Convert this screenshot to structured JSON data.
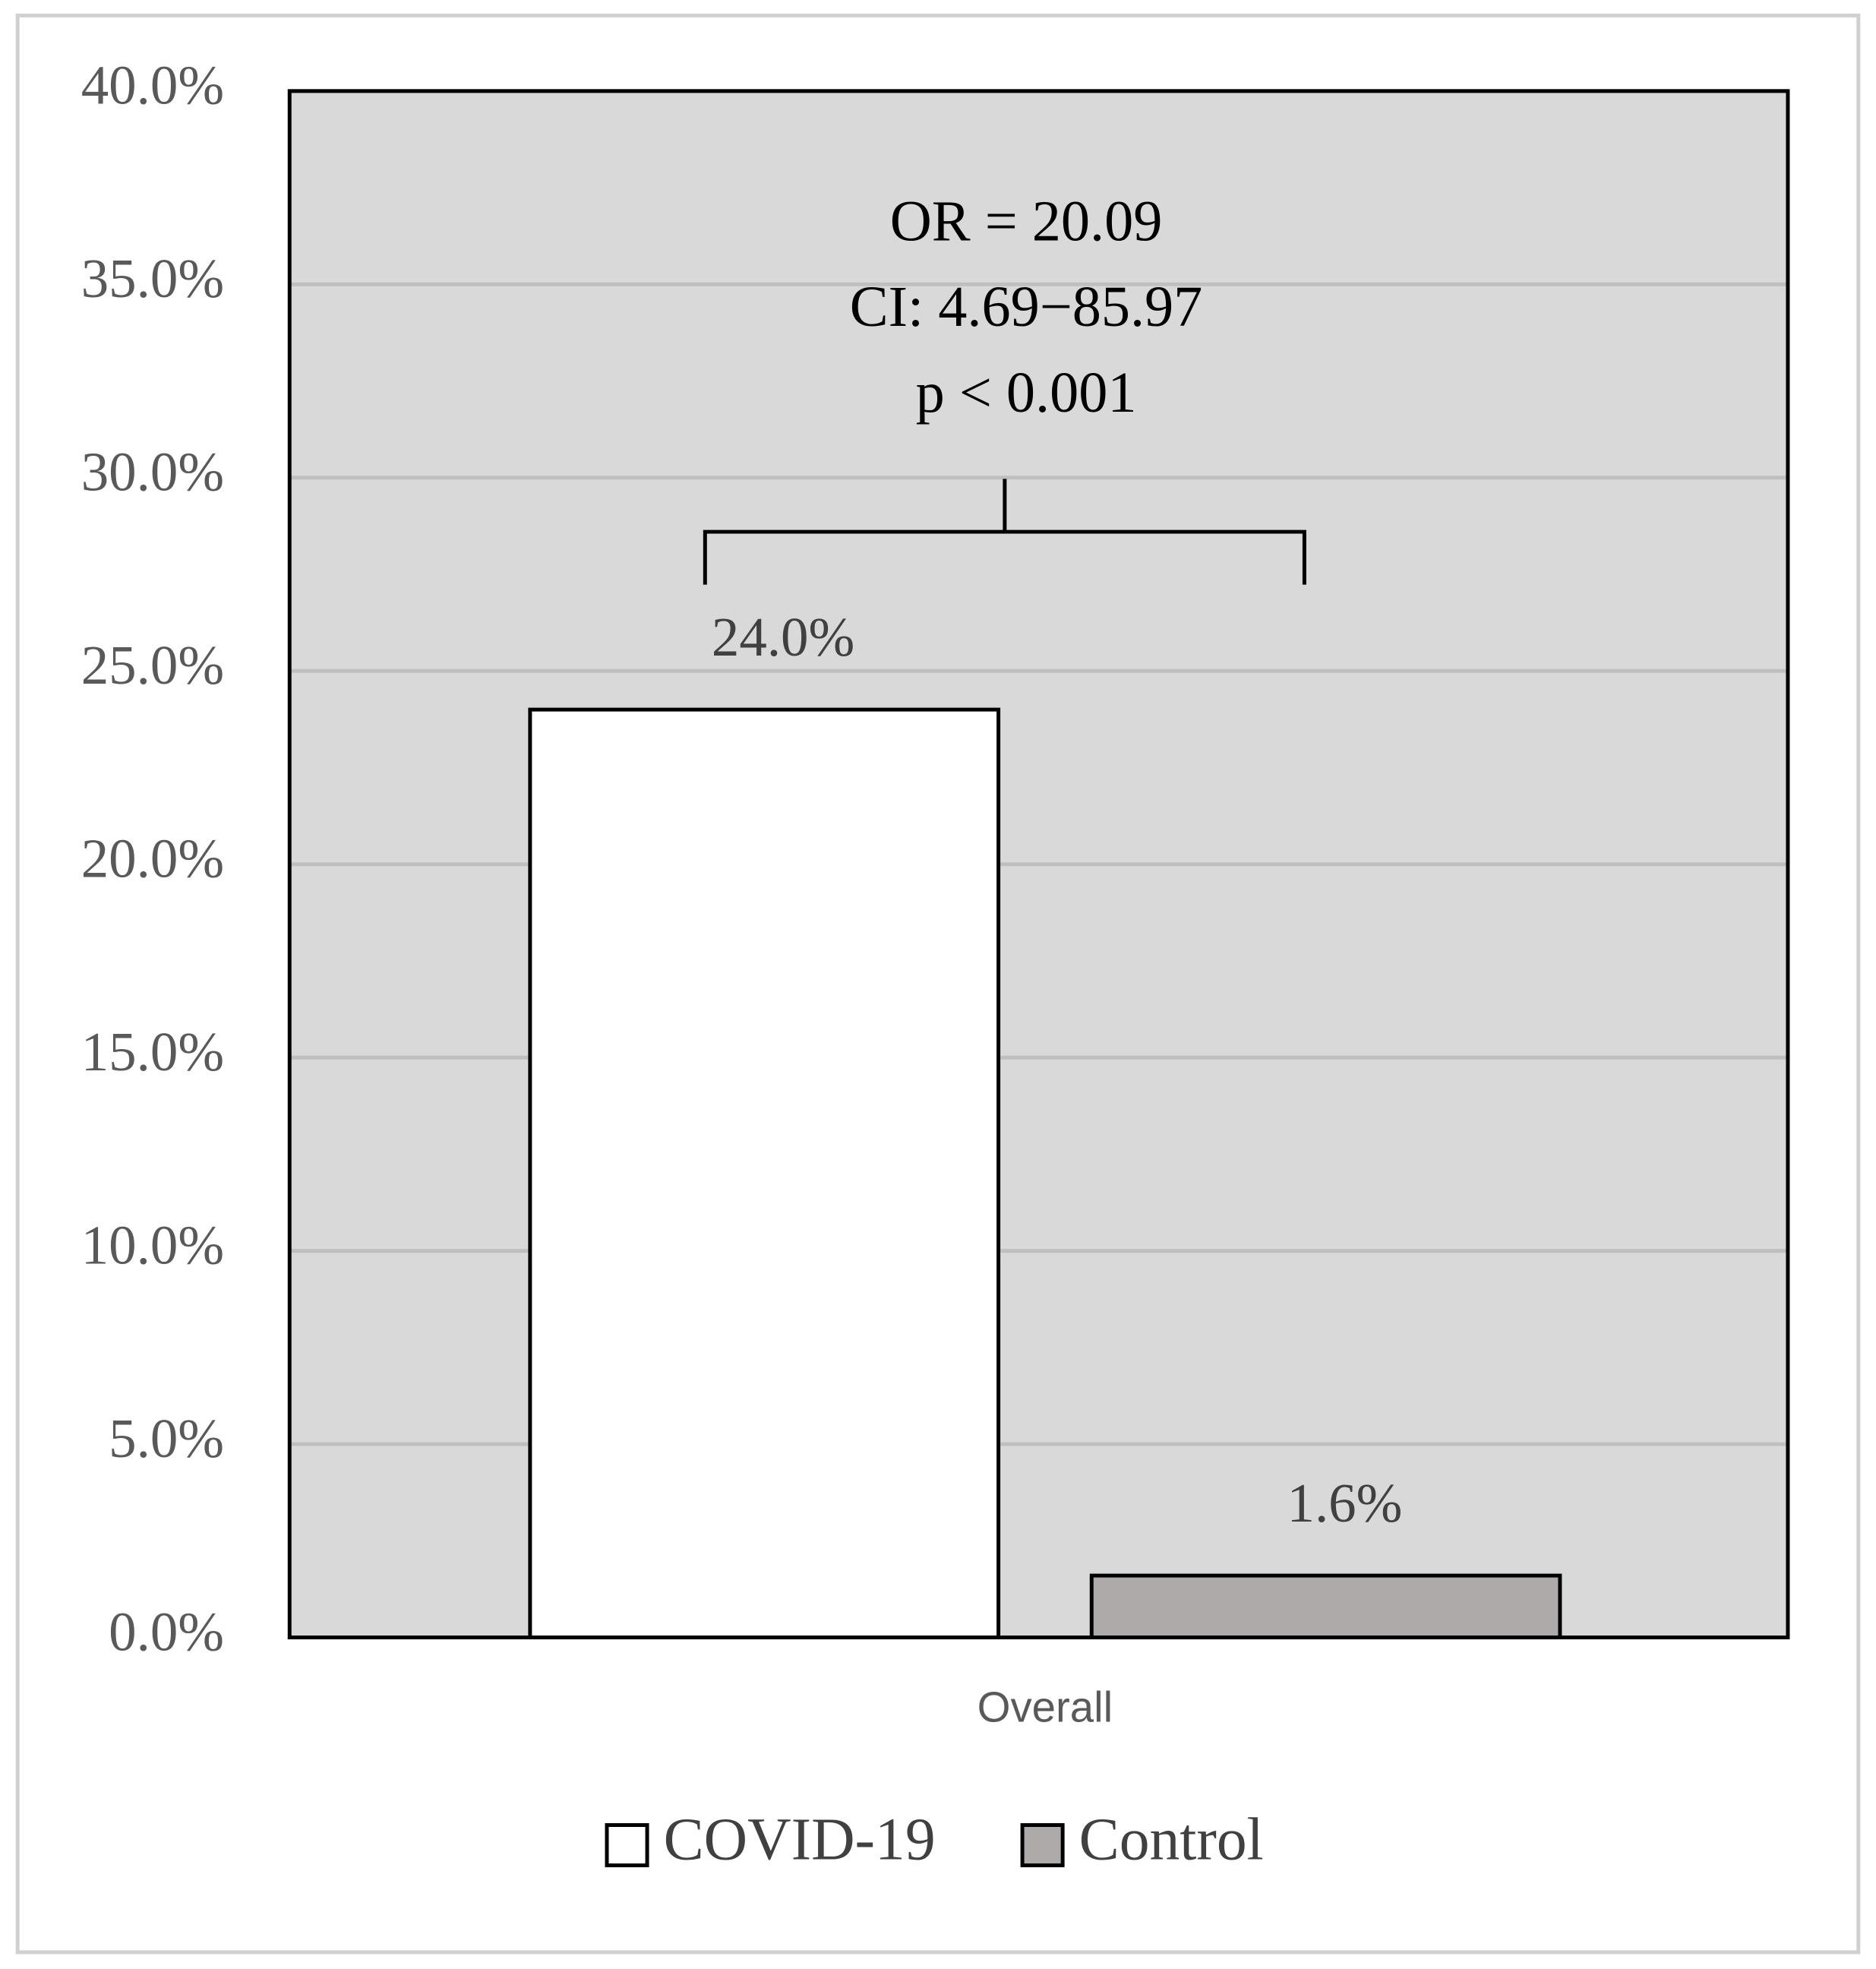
{
  "chart_data": {
    "type": "bar",
    "categories": [
      "Overall"
    ],
    "series": [
      {
        "name": "COVID-19",
        "color": "#ffffff",
        "values": [
          24.0
        ],
        "value_labels": [
          "24.0%"
        ]
      },
      {
        "name": "Control",
        "color": "#aeaaaa",
        "values": [
          1.6
        ],
        "value_labels": [
          "1.6%"
        ]
      }
    ],
    "ylim": [
      0,
      40
    ],
    "yticks": [
      {
        "value": 0,
        "label": "0.0%"
      },
      {
        "value": 5,
        "label": "5.0%"
      },
      {
        "value": 10,
        "label": "10.0%"
      },
      {
        "value": 15,
        "label": "15.0%"
      },
      {
        "value": 20,
        "label": "20.0%"
      },
      {
        "value": 25,
        "label": "25.0%"
      },
      {
        "value": 30,
        "label": "30.0%"
      },
      {
        "value": 35,
        "label": "35.0%"
      },
      {
        "value": 40,
        "label": "40.0%"
      }
    ],
    "grid": true,
    "plot_background": "#d9d9d9",
    "annotations": [
      "OR = 20.09",
      "CI: 4.69−85.97",
      "p < 0.001"
    ],
    "legend": "bottom"
  }
}
